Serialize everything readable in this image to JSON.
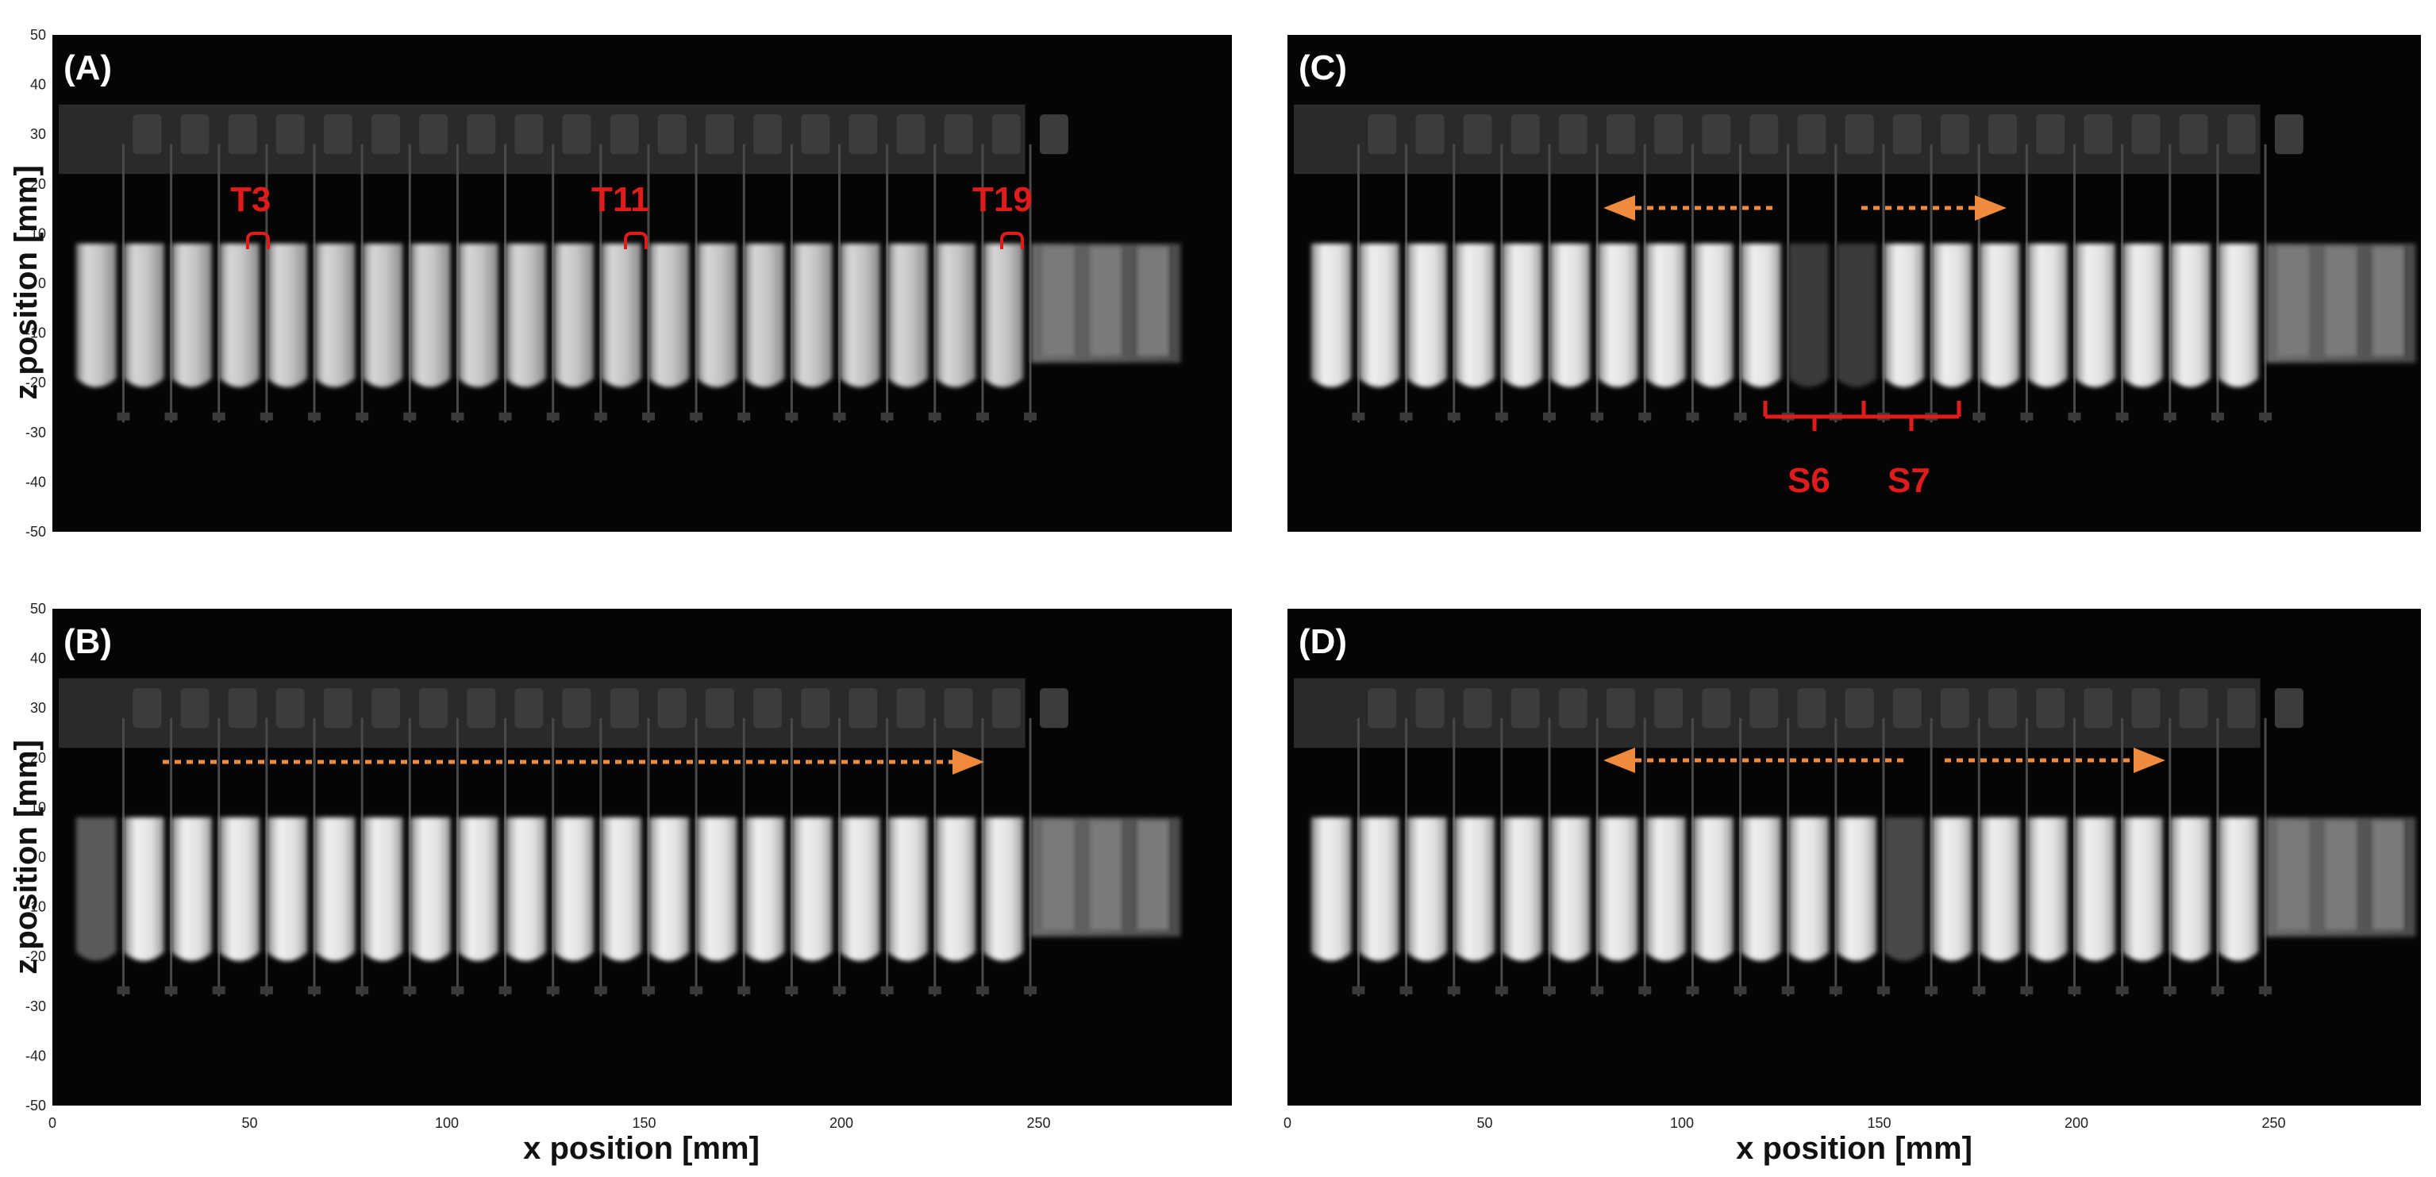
{
  "figure": {
    "x_axis_label": "x position [mm]",
    "y_axis_label": "z position [mm]",
    "x_ticks": [
      "0",
      "50",
      "100",
      "150",
      "200",
      "250"
    ],
    "y_ticks": [
      "50",
      "40",
      "30",
      "20",
      "10",
      "0",
      "-10",
      "-20",
      "-30",
      "-40",
      "-50"
    ],
    "x_range_mm": [
      0,
      287
    ],
    "z_range_mm": [
      -50,
      50
    ],
    "annotation_color": "#e01b1b",
    "arrow_color": "#f08a3c"
  },
  "panels": [
    {
      "id": "A",
      "label": "(A)",
      "annotations": [
        "T3",
        "T11",
        "T19"
      ],
      "arrows": []
    },
    {
      "id": "B",
      "label": "(B)",
      "annotations": [],
      "arrows": [
        "right"
      ]
    },
    {
      "id": "C",
      "label": "(C)",
      "annotations": [
        "S6",
        "S7"
      ],
      "arrows": [
        "left",
        "right"
      ]
    },
    {
      "id": "D",
      "label": "(D)",
      "annotations": [],
      "arrows": [
        "left",
        "right"
      ]
    }
  ]
}
